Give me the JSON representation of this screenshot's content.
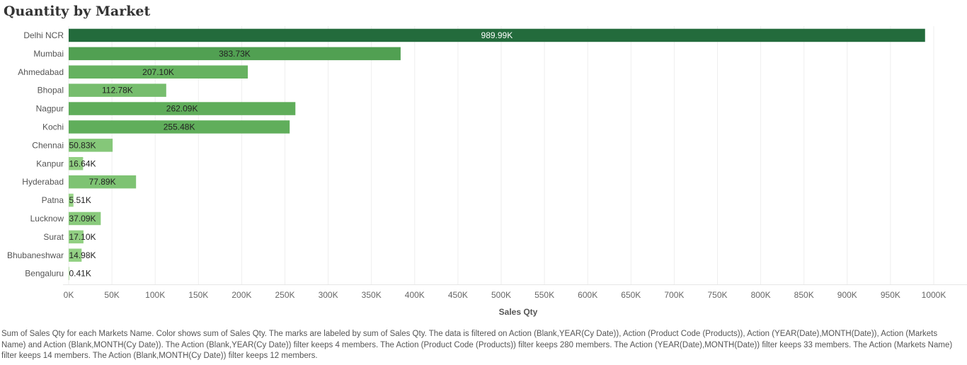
{
  "chart_data": {
    "type": "bar",
    "orientation": "horizontal",
    "title": "Quantity by Market",
    "xlabel": "Sales Qty",
    "ylabel": "",
    "xlim": [
      0,
      1000000
    ],
    "x_ticks": [
      0,
      50000,
      100000,
      150000,
      200000,
      250000,
      300000,
      350000,
      400000,
      450000,
      500000,
      550000,
      600000,
      650000,
      700000,
      750000,
      800000,
      850000,
      900000,
      950000,
      1000000
    ],
    "x_tick_labels": [
      "0K",
      "50K",
      "100K",
      "150K",
      "200K",
      "250K",
      "300K",
      "350K",
      "400K",
      "450K",
      "500K",
      "550K",
      "600K",
      "650K",
      "700K",
      "750K",
      "800K",
      "850K",
      "900K",
      "950K",
      "1000K"
    ],
    "grid": true,
    "categories": [
      "Delhi NCR",
      "Mumbai",
      "Ahmedabad",
      "Bhopal",
      "Nagpur",
      "Kochi",
      "Chennai",
      "Kanpur",
      "Hyderabad",
      "Patna",
      "Lucknow",
      "Surat",
      "Bhubaneshwar",
      "Bengaluru"
    ],
    "values": [
      989990,
      383730,
      207100,
      112780,
      262090,
      255480,
      50830,
      16640,
      77890,
      5510,
      37090,
      17100,
      14980,
      410
    ],
    "data_labels": [
      "989.99K",
      "383.73K",
      "207.10K",
      "112.78K",
      "262.09K",
      "255.48K",
      "50.83K",
      "16.64K",
      "77.89K",
      "5.51K",
      "37.09K",
      "17.10K",
      "14.98K",
      "0.41K"
    ],
    "colors": {
      "color_scale": [
        "#a3dc91",
        "#5aaa56",
        "#236b3c"
      ],
      "label_dark": "#222222",
      "label_light": "#ffffff",
      "grid": "#eeeeee"
    }
  },
  "footer": {
    "note": "Sum of Sales Qty for each Markets Name.  Color shows sum of Sales Qty.  The marks are labeled by sum of Sales Qty. The data is filtered on Action (Blank,YEAR(Cy Date)), Action (Product Code (Products)), Action (YEAR(Date),MONTH(Date)), Action (Markets Name) and Action (Blank,MONTH(Cy Date)). The Action (Blank,YEAR(Cy Date)) filter keeps 4 members. The Action (Product Code (Products)) filter keeps 280 members. The Action (YEAR(Date),MONTH(Date)) filter keeps 33 members. The Action (Markets Name) filter keeps 14 members. The Action (Blank,MONTH(Cy Date)) filter keeps 12 members."
  }
}
